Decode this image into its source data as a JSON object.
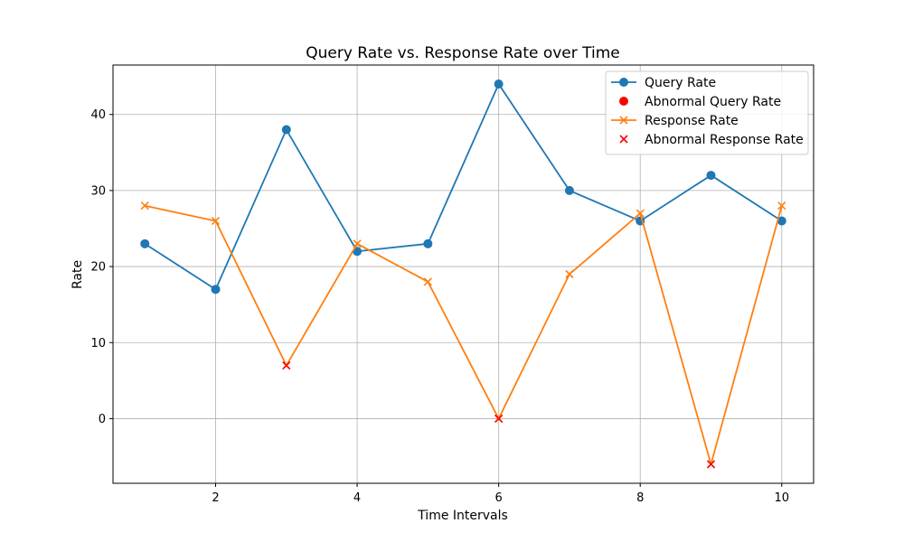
{
  "chart_data": {
    "type": "line",
    "title": "Query Rate vs. Response Rate over Time",
    "xlabel": "Time Intervals",
    "ylabel": "Rate",
    "x": [
      1,
      2,
      3,
      4,
      5,
      6,
      7,
      8,
      9,
      10
    ],
    "xlim": [
      0.55,
      10.45
    ],
    "ylim": [
      -8.5,
      46.5
    ],
    "xticks": [
      2,
      4,
      6,
      8,
      10
    ],
    "yticks": [
      0,
      10,
      20,
      30,
      40
    ],
    "grid": true,
    "legend_position": "top-right",
    "series": [
      {
        "name": "Query Rate",
        "kind": "line",
        "marker": "circle",
        "color": "#1f77b4",
        "values": [
          23,
          17,
          38,
          22,
          23,
          44,
          30,
          26,
          32,
          26
        ]
      },
      {
        "name": "Abnormal Query Rate",
        "kind": "scatter",
        "marker": "circle",
        "color": "#ff0000",
        "points": []
      },
      {
        "name": "Response Rate",
        "kind": "line",
        "marker": "x",
        "color": "#ff7f0e",
        "values": [
          28,
          26,
          7,
          23,
          18,
          0,
          19,
          27,
          -6,
          28
        ]
      },
      {
        "name": "Abnormal Response Rate",
        "kind": "scatter",
        "marker": "x",
        "color": "#ff0000",
        "points": [
          {
            "x": 3,
            "y": 7
          },
          {
            "x": 6,
            "y": 0
          },
          {
            "x": 9,
            "y": -6
          }
        ]
      }
    ]
  }
}
